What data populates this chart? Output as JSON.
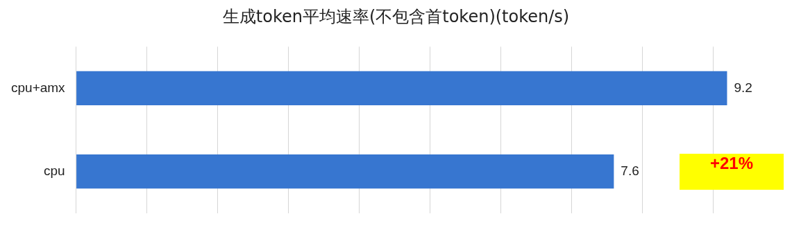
{
  "chart_data": {
    "type": "bar",
    "orientation": "horizontal",
    "title": "生成token平均速率(不包含首token)(token/s)",
    "categories": [
      "cpu+amx",
      "cpu"
    ],
    "series": [
      {
        "color": "#3776d0",
        "values": [
          9.2,
          7.6
        ]
      }
    ],
    "xticks": [
      {
        "value": 0,
        "label": null
      },
      {
        "value": 1,
        "label": null
      },
      {
        "value": 2,
        "label": null
      },
      {
        "value": 3,
        "label": null
      },
      {
        "value": 4,
        "label": null
      },
      {
        "value": 5,
        "label": null
      },
      {
        "value": 6,
        "label": null
      },
      {
        "value": 7,
        "label": null
      },
      {
        "value": 8,
        "label": null
      },
      {
        "value": 9,
        "label": null
      }
    ],
    "tick_labels": "y",
    "grid": "x",
    "legend": false,
    "data_labels": true,
    "annotations": [
      "+21%"
    ]
  }
}
